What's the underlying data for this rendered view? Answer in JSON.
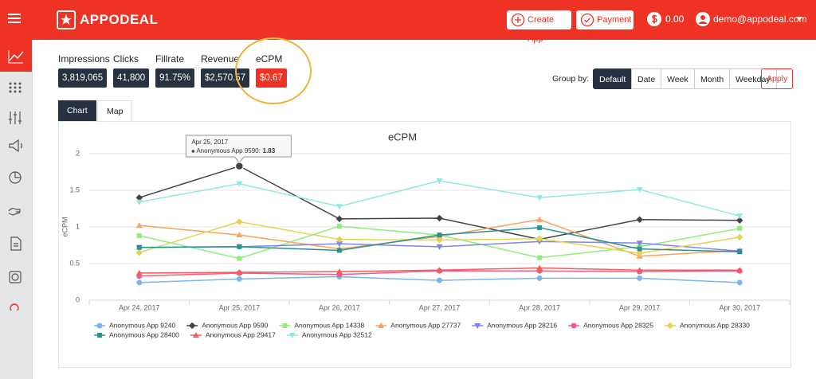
{
  "header": {
    "brand": "APPODEAL",
    "create_app": "Create App",
    "payment": "Payment",
    "balance": "0.00",
    "user": "demo@appodeal.com"
  },
  "stats": [
    {
      "label": "Impressions",
      "value": "3,819,065"
    },
    {
      "label": "Clicks",
      "value": "41,800"
    },
    {
      "label": "Fillrate",
      "value": "91.75%"
    },
    {
      "label": "Revenue",
      "value": "$2,570.57"
    },
    {
      "label": "eCPM",
      "value": "$0.67"
    }
  ],
  "group_by": {
    "label": "Group by:",
    "options": [
      "Default",
      "Date",
      "Week",
      "Month",
      "Weekday"
    ],
    "apply": "Apply"
  },
  "tabs": [
    "Chart",
    "Map"
  ],
  "chart_data": {
    "type": "line",
    "title": "eCPM",
    "y_label": "eCPM",
    "categories": [
      "Apr 24, 2017",
      "Apr 25, 2017",
      "Apr 26, 2017",
      "Apr 27, 2017",
      "Apr 28, 2017",
      "Apr 29, 2017",
      "Apr 30, 2017"
    ],
    "ylim": [
      0,
      2
    ],
    "yticks": [
      0,
      0.5,
      1,
      1.5,
      2
    ],
    "grid": true,
    "series": [
      {
        "name": "Anonymous App 9240",
        "color": "#7cb5ec",
        "values": [
          0.24,
          0.29,
          0.32,
          0.27,
          0.3,
          0.3,
          0.24
        ]
      },
      {
        "name": "Anonymous App 9590",
        "color": "#434348",
        "values": [
          1.4,
          1.83,
          1.11,
          1.12,
          0.83,
          1.1,
          1.09
        ]
      },
      {
        "name": "Anonymous App 14338",
        "color": "#90ed7d",
        "values": [
          0.88,
          0.57,
          1.01,
          0.89,
          0.58,
          0.73,
          0.98
        ]
      },
      {
        "name": "Anonymous App 27737",
        "color": "#f7a35c",
        "values": [
          1.02,
          0.89,
          0.7,
          0.87,
          1.1,
          0.6,
          0.68
        ]
      },
      {
        "name": "Anonymous App 28216",
        "color": "#8085e9",
        "values": [
          0.72,
          0.73,
          0.77,
          0.73,
          0.8,
          0.78,
          0.67
        ]
      },
      {
        "name": "Anonymous App 28325",
        "color": "#f15c80",
        "values": [
          0.33,
          0.37,
          0.35,
          0.4,
          0.4,
          0.39,
          0.4
        ]
      },
      {
        "name": "Anonymous App 28330",
        "color": "#e4d354",
        "values": [
          0.65,
          1.07,
          0.83,
          0.82,
          0.84,
          0.64,
          0.86
        ]
      },
      {
        "name": "Anonymous App 28400",
        "color": "#2b908f",
        "values": [
          0.72,
          0.73,
          0.68,
          0.89,
          0.99,
          0.7,
          0.66
        ]
      },
      {
        "name": "Anonymous App 29417",
        "color": "#f45b5b",
        "values": [
          0.37,
          0.38,
          0.39,
          0.41,
          0.44,
          0.41,
          0.41
        ]
      },
      {
        "name": "Anonymous App 32512",
        "color": "#91e8e1",
        "values": [
          1.34,
          1.59,
          1.28,
          1.63,
          1.4,
          1.51,
          1.15
        ]
      }
    ]
  }
}
